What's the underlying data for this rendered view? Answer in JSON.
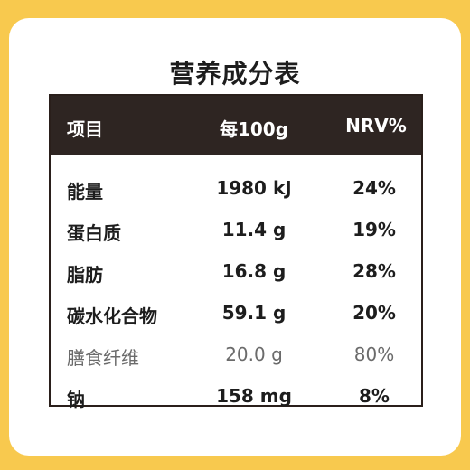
{
  "title": "营养成分表",
  "header": {
    "item": "项目",
    "amount": "每100g",
    "nrv": "NRV%"
  },
  "rows": [
    {
      "name": "能量",
      "amount": "1980 kJ",
      "nrv": "24%"
    },
    {
      "name": "蛋白质",
      "amount": "11.4 g",
      "nrv": "19%"
    },
    {
      "name": "脂肪",
      "amount": "16.8 g",
      "nrv": "28%"
    },
    {
      "name": "碳水化合物",
      "amount": "59.1 g",
      "nrv": "20%"
    },
    {
      "name": "膳食纤维",
      "amount": "20.0 g",
      "nrv": "80%"
    },
    {
      "name": "钠",
      "amount": "158 mg",
      "nrv": "8%"
    }
  ],
  "colors": {
    "background": "#f8c94e",
    "header_bg": "#2e2522",
    "header_text": "#ffffff",
    "body_text": "#1d1d1d",
    "muted_text": "#6b6b6b"
  }
}
